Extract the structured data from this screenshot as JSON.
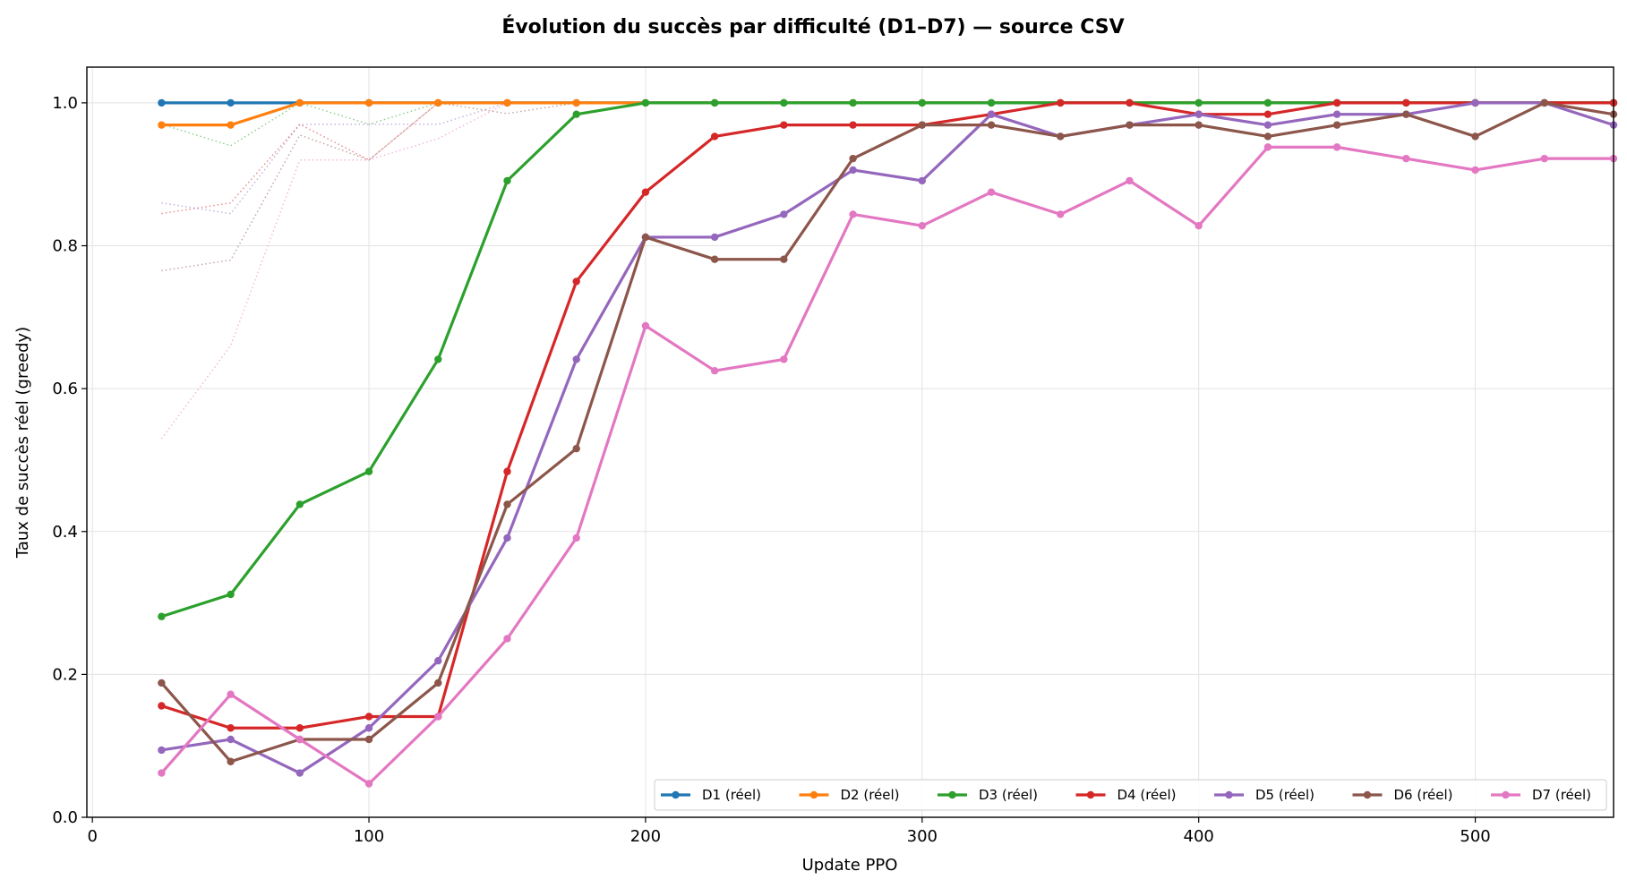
{
  "chart_data": {
    "type": "line",
    "title": "Évolution du succès par difficulté (D1–D7) — source CSV",
    "xlabel": "Update PPO",
    "ylabel": "Taux de succès réel (greedy)",
    "xlim": [
      -2,
      550
    ],
    "ylim": [
      0,
      1.05
    ],
    "xticks": [
      0,
      100,
      200,
      300,
      400,
      500
    ],
    "yticks": [
      0.0,
      0.2,
      0.4,
      0.6,
      0.8,
      1.0
    ],
    "xtick_labels": [
      "0",
      "100",
      "200",
      "300",
      "400",
      "500"
    ],
    "ytick_labels": [
      "0.0",
      "0.2",
      "0.4",
      "0.6",
      "0.8",
      "1.0"
    ],
    "grid": true,
    "legend_position": "lower-right",
    "x": [
      25,
      50,
      75,
      100,
      125,
      150,
      175,
      200,
      225,
      250,
      275,
      300,
      325,
      350,
      375,
      400,
      425,
      450,
      475,
      500,
      525,
      550
    ],
    "series": [
      {
        "name": "D1 (réel)",
        "color": "#1f77b4",
        "values": [
          1,
          1,
          1,
          1,
          1,
          1,
          1,
          1,
          1,
          1,
          1,
          1,
          1,
          1,
          1,
          1,
          1,
          1,
          1,
          1,
          1,
          1
        ]
      },
      {
        "name": "D2 (réel)",
        "color": "#ff7f0e",
        "values": [
          0.969,
          0.969,
          1,
          1,
          1,
          1,
          1,
          1,
          1,
          1,
          1,
          1,
          1,
          1,
          1,
          1,
          1,
          1,
          1,
          1,
          1,
          1
        ]
      },
      {
        "name": "D3 (réel)",
        "color": "#2ca02c",
        "values": [
          0.281,
          0.312,
          0.438,
          0.484,
          0.641,
          0.891,
          0.984,
          1,
          1,
          1,
          1,
          1,
          1,
          1,
          1,
          1,
          1,
          1,
          1,
          1,
          1,
          1
        ]
      },
      {
        "name": "D4 (réel)",
        "color": "#d62728",
        "values": [
          0.156,
          0.125,
          0.125,
          0.141,
          0.141,
          0.484,
          0.75,
          0.875,
          0.953,
          0.969,
          0.969,
          0.969,
          0.984,
          1,
          1,
          0.984,
          0.984,
          1,
          1,
          1,
          1,
          1
        ]
      },
      {
        "name": "D5 (réel)",
        "color": "#9467bd",
        "values": [
          0.094,
          0.109,
          0.062,
          0.125,
          0.219,
          0.391,
          0.641,
          0.812,
          0.812,
          0.844,
          0.906,
          0.891,
          0.984,
          0.953,
          0.969,
          0.984,
          0.969,
          0.984,
          0.984,
          1,
          1,
          0.969
        ]
      },
      {
        "name": "D6 (réel)",
        "color": "#8c564b",
        "values": [
          0.188,
          0.078,
          0.109,
          0.109,
          0.188,
          0.438,
          0.516,
          0.812,
          0.781,
          0.781,
          0.922,
          0.969,
          0.969,
          0.953,
          0.969,
          0.969,
          0.953,
          0.969,
          0.984,
          0.953,
          1,
          0.984
        ]
      },
      {
        "name": "D7 (réel)",
        "color": "#e377c2",
        "values": [
          0.062,
          0.172,
          0.109,
          0.047,
          0.141,
          0.25,
          0.391,
          0.688,
          0.625,
          0.641,
          0.844,
          0.828,
          0.875,
          0.844,
          0.891,
          0.828,
          0.938,
          0.938,
          0.922,
          0.906,
          0.922,
          0.922
        ]
      }
    ],
    "dotted_series": [
      {
        "color": "#1f77b4",
        "x": [
          25,
          50,
          75,
          100,
          125,
          150,
          175
        ],
        "values": [
          1,
          1,
          1,
          1,
          1,
          1,
          1
        ]
      },
      {
        "color": "#ff7f0e",
        "x": [
          25,
          50,
          75,
          100,
          125,
          150,
          175
        ],
        "values": [
          0.97,
          0.97,
          1,
          1,
          1,
          1,
          1
        ]
      },
      {
        "color": "#2ca02c",
        "x": [
          25,
          50,
          75,
          100,
          125,
          150,
          175
        ],
        "values": [
          0.97,
          0.94,
          1,
          0.97,
          1,
          1,
          1
        ]
      },
      {
        "color": "#d62728",
        "x": [
          25,
          50,
          75,
          100,
          125,
          150,
          175
        ],
        "values": [
          0.845,
          0.86,
          0.97,
          0.92,
          1,
          1,
          1
        ]
      },
      {
        "color": "#9467bd",
        "x": [
          25,
          50,
          75,
          100,
          125,
          150,
          175
        ],
        "values": [
          0.86,
          0.845,
          0.97,
          0.97,
          0.97,
          1,
          1
        ]
      },
      {
        "color": "#8c564b",
        "x": [
          25,
          50,
          75,
          100,
          125,
          150,
          175
        ],
        "values": [
          0.765,
          0.78,
          0.955,
          0.92,
          1,
          0.985,
          1
        ]
      },
      {
        "color": "#e377c2",
        "x": [
          25,
          50,
          75,
          100,
          125,
          150,
          175
        ],
        "values": [
          0.53,
          0.66,
          0.92,
          0.92,
          0.95,
          1,
          1
        ]
      }
    ]
  }
}
